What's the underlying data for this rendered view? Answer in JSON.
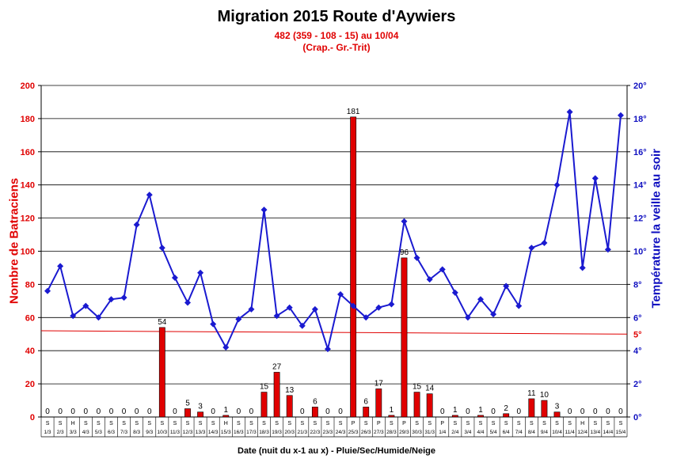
{
  "titles": {
    "main": "Migration 2015 Route d'Aywiers",
    "sub1": "482 (359 - 108 - 15) au 10/04",
    "sub2": "(Crap.- Gr.-Trit)"
  },
  "chart_data": {
    "type": "bar+line",
    "title": "Migration 2015 Route d'Aywiers",
    "subtitle": [
      "482 (359 - 108 - 15) au 10/04",
      "(Crap.- Gr.-Trit)"
    ],
    "xlabel": "Date (nuit du x-1 au x) - Pluie/Sec/Humide/Neige",
    "ylabel_left": "Nombre de Batraciens",
    "ylabel_right": "Température la veille au soir",
    "ylim_left": [
      0,
      200
    ],
    "yticks_left": [
      0,
      20,
      40,
      60,
      80,
      100,
      120,
      140,
      160,
      180,
      200
    ],
    "ylim_right": [
      0,
      20
    ],
    "yticks_right": [
      "0°",
      "2°",
      "4°",
      "6°",
      "8°",
      "10°",
      "12°",
      "14°",
      "16°",
      "18°",
      "20°"
    ],
    "grid": true,
    "colors": {
      "bars": "#e00000",
      "line": "#1a1ad0",
      "threshold": "#e00000",
      "text_red": "#e00000",
      "text_blue": "#1010c0"
    },
    "categories": [
      "1/3",
      "2/3",
      "3/3",
      "4/3",
      "5/3",
      "6/3",
      "7/3",
      "8/3",
      "9/3",
      "10/3",
      "11/3",
      "12/3",
      "13/3",
      "14/3",
      "15/3",
      "16/3",
      "17/3",
      "18/3",
      "19/3",
      "20/3",
      "21/3",
      "22/3",
      "23/3",
      "24/3",
      "25/3",
      "26/3",
      "27/3",
      "28/3",
      "29/3",
      "30/3",
      "31/3",
      "1/4",
      "2/4",
      "3/4",
      "4/4",
      "5/4",
      "6/4",
      "7/4",
      "8/4",
      "9/4",
      "10/4",
      "11/4",
      "12/4",
      "13/4",
      "14/4",
      "15/4"
    ],
    "weather": [
      "S",
      "S",
      "H",
      "S",
      "S",
      "S",
      "S",
      "S",
      "S",
      "S",
      "S",
      "S",
      "S",
      "S",
      "H",
      "S",
      "S",
      "S",
      "S",
      "S",
      "S",
      "S",
      "S",
      "S",
      "P",
      "S",
      "P",
      "S",
      "P",
      "S",
      "S",
      "P",
      "S",
      "S",
      "S",
      "S",
      "S",
      "S",
      "S",
      "S",
      "S",
      "S",
      "H",
      "S",
      "S",
      "S"
    ],
    "series": [
      {
        "type": "bar",
        "axis": "left",
        "values": [
          0,
          0,
          0,
          0,
          0,
          0,
          0,
          0,
          0,
          54,
          0,
          5,
          3,
          0,
          1,
          0,
          0,
          15,
          27,
          13,
          0,
          6,
          0,
          0,
          181,
          6,
          17,
          1,
          96,
          15,
          14,
          0,
          1,
          0,
          1,
          0,
          2,
          0,
          11,
          10,
          3,
          0,
          0,
          0,
          0,
          0
        ]
      },
      {
        "type": "line",
        "axis": "right",
        "values": [
          7.6,
          9.1,
          6.1,
          6.7,
          6.0,
          7.1,
          7.2,
          11.6,
          13.4,
          10.2,
          8.4,
          6.9,
          8.7,
          5.6,
          4.2,
          5.9,
          6.5,
          12.5,
          6.1,
          6.6,
          5.5,
          6.5,
          4.1,
          7.4,
          6.7,
          6.0,
          6.6,
          6.8,
          11.8,
          9.6,
          8.3,
          8.9,
          7.5,
          6.0,
          7.1,
          6.2,
          7.9,
          6.7,
          10.2,
          10.5,
          14.0,
          18.4,
          9.0,
          14.4,
          10.1,
          18.2
        ]
      },
      {
        "type": "threshold",
        "axis": "right",
        "value_start": 5.2,
        "value_end": 5.0,
        "label": "5°"
      }
    ]
  }
}
